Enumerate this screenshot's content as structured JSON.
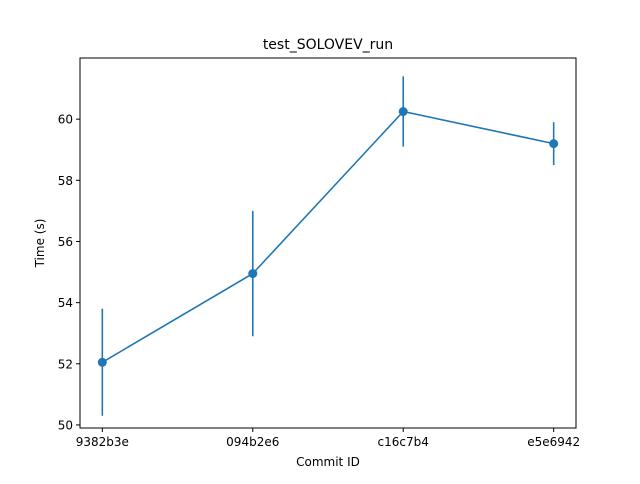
{
  "chart_data": {
    "type": "line",
    "title": "test_SOLOVEV_run",
    "xlabel": "Commit ID",
    "ylabel": "Time (s)",
    "categories": [
      "9382b3e",
      "094b2e6",
      "c16c7b4",
      "e5e6942"
    ],
    "series": [
      {
        "values": [
          52.05,
          54.95,
          60.25,
          59.2
        ],
        "error_low": [
          50.3,
          52.9,
          59.1,
          58.5
        ],
        "error_high": [
          53.8,
          57.0,
          61.4,
          59.9
        ],
        "color": "#1f77b4"
      }
    ],
    "ylim": [
      49.9,
      62.0
    ],
    "yticks": [
      50,
      52,
      54,
      56,
      58,
      60
    ],
    "ytick_labels": [
      "50",
      "52",
      "54",
      "56",
      "58",
      "60"
    ],
    "grid": false,
    "legend": "none"
  }
}
